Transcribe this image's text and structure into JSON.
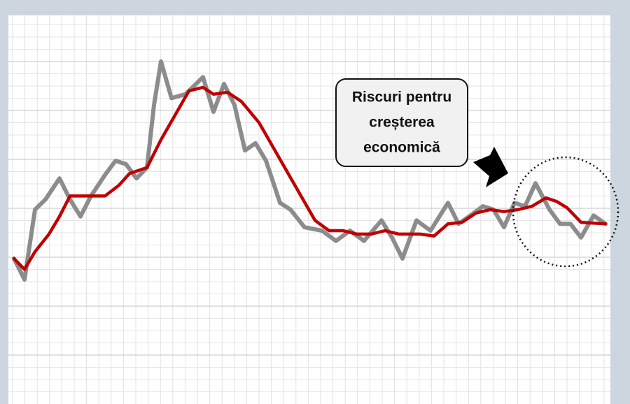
{
  "chart_data": {
    "type": "line",
    "annotation": [
      "Riscuri pentru",
      "creșterea",
      "economică"
    ],
    "xlim": [
      -8,
      852
    ],
    "ylim": [
      0,
      79.3
    ],
    "grid": true,
    "series": [
      {
        "color": "#8c8c8c",
        "x": [
          0,
          15,
          30,
          45,
          65,
          80,
          95,
          110,
          130,
          145,
          160,
          175,
          190,
          200,
          210,
          225,
          245,
          270,
          285,
          300,
          315,
          330,
          345,
          360,
          380,
          395,
          415,
          440,
          460,
          480,
          500,
          525,
          540,
          555,
          575,
          595,
          620,
          635,
          650,
          670,
          685,
          700,
          715,
          730,
          745,
          765,
          780,
          795,
          810,
          828,
          845
        ],
        "values": [
          29.3,
          25,
          39.3,
          41.4,
          45.7,
          41.4,
          37.9,
          42.1,
          46.4,
          49.3,
          48.6,
          45.7,
          47.9,
          60.7,
          69.6,
          62.1,
          62.9,
          66.4,
          59.3,
          65,
          60.7,
          51.4,
          52.9,
          49.3,
          40.7,
          39.3,
          35.7,
          35,
          32.9,
          35,
          32.9,
          37.1,
          33.6,
          29.3,
          37.1,
          35,
          40.7,
          36.4,
          37.9,
          40,
          39.3,
          35.7,
          40.7,
          40,
          44.7,
          39.3,
          36.4,
          36.4,
          33.6,
          38.1,
          36.4
        ]
      },
      {
        "color": "#c00000",
        "x": [
          0,
          15,
          30,
          50,
          65,
          80,
          100,
          130,
          150,
          165,
          190,
          210,
          230,
          250,
          270,
          285,
          305,
          325,
          350,
          370,
          390,
          410,
          430,
          450,
          470,
          490,
          510,
          530,
          550,
          580,
          600,
          620,
          640,
          660,
          680,
          700,
          720,
          740,
          760,
          775,
          790,
          810,
          845
        ],
        "values": [
          29.3,
          27.1,
          30.7,
          34.3,
          37.9,
          42.1,
          42.1,
          42.1,
          44.3,
          46.7,
          47.9,
          53.6,
          58.6,
          63.6,
          64.3,
          62.9,
          63.3,
          61.4,
          57.1,
          52.1,
          47.1,
          42.1,
          37.1,
          35,
          35,
          34.3,
          34.3,
          35,
          34.3,
          34.3,
          33.9,
          36.4,
          36.7,
          38.6,
          39.3,
          38.9,
          39.3,
          40,
          41.7,
          41,
          39.7,
          36.7,
          36.4
        ]
      }
    ]
  }
}
